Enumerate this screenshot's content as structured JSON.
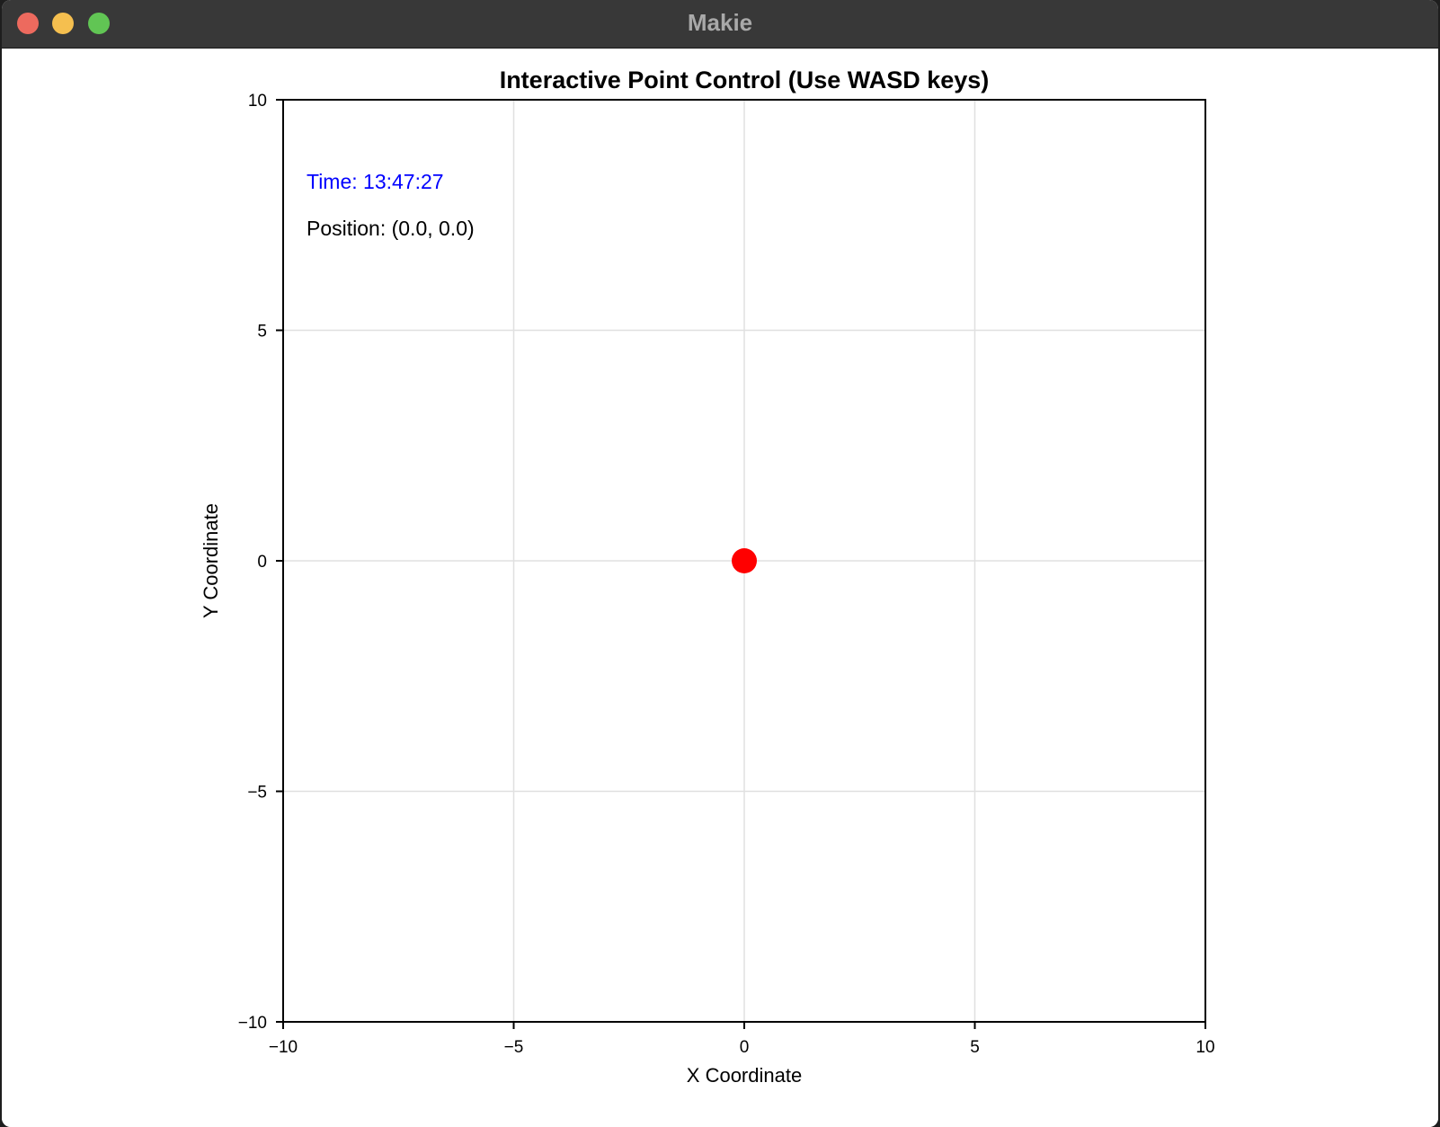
{
  "window": {
    "title": "Makie",
    "controls": [
      "close",
      "minimize",
      "maximize"
    ]
  },
  "colors": {
    "titlebar": "#383838",
    "close": "#ed6a5e",
    "minimize": "#f5bf4f",
    "maximize": "#61c554",
    "point": "#ff0000",
    "time_text": "#0000ff",
    "grid": "#e0e0e0"
  },
  "annotations": {
    "time": "Time: 13:47:27",
    "position": "Position: (0.0, 0.0)"
  },
  "chart_data": {
    "type": "scatter",
    "title": "Interactive Point Control (Use WASD keys)",
    "xlabel": "X Coordinate",
    "ylabel": "Y Coordinate",
    "xlim": [
      -10,
      10
    ],
    "ylim": [
      -10,
      10
    ],
    "xticks": [
      -10,
      -5,
      0,
      5,
      10
    ],
    "yticks": [
      -10,
      -5,
      0,
      5,
      10
    ],
    "xtick_labels": [
      "−10",
      "−5",
      "0",
      "5",
      "10"
    ],
    "ytick_labels": [
      "−10",
      "−5",
      "0",
      "5",
      "10"
    ],
    "grid": true,
    "points": [
      {
        "x": 0.0,
        "y": 0.0,
        "color": "#ff0000"
      }
    ]
  }
}
